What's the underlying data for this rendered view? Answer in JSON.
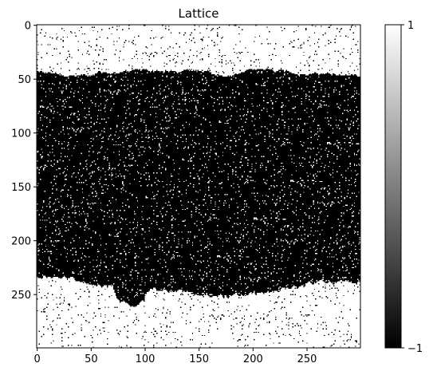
{
  "chart_data": {
    "type": "heatmap",
    "title": "Lattice",
    "xlabel": "",
    "ylabel": "",
    "grid_size": [
      300,
      300
    ],
    "xlim": [
      0,
      299
    ],
    "ylim": [
      299,
      0
    ],
    "x_ticks": [
      "0",
      "50",
      "100",
      "150",
      "200",
      "250"
    ],
    "y_ticks": [
      "0",
      "50",
      "100",
      "150",
      "200",
      "250"
    ],
    "value_range": [
      -1,
      1
    ],
    "colormap": "gray",
    "colorbar": {
      "tick_labels": [
        "1",
        "−1"
      ],
      "ticks": [
        1,
        -1
      ]
    },
    "regions": [
      {
        "state": 1,
        "description": "spin-up (white) band at top",
        "y_range": [
          0,
          45
        ],
        "noise": 0.03
      },
      {
        "state": -1,
        "description": "spin-down (black) domain",
        "y_range": [
          45,
          255
        ],
        "noise": 0.05
      },
      {
        "state": 1,
        "description": "spin-up (white) band at bottom",
        "y_range": [
          255,
          299
        ],
        "noise": 0.03
      }
    ]
  }
}
